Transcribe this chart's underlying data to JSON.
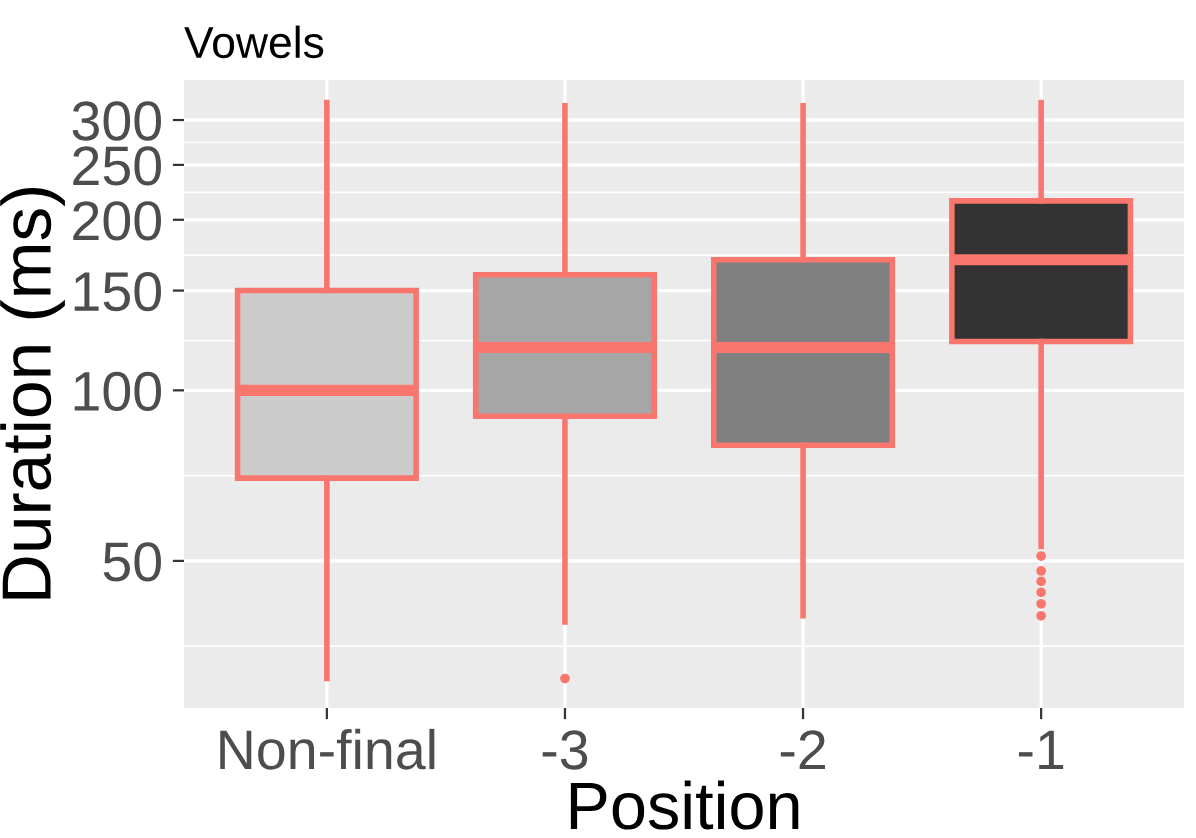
{
  "chart_data": {
    "type": "box",
    "title": "Vowels",
    "xlabel": "Position",
    "ylabel": "Duration (ms)",
    "categories": [
      "Non-final",
      "-3",
      "-2",
      "-1"
    ],
    "series": [
      {
        "color": "#f8766d",
        "colors": [
          "#cccccc",
          "#a6a6a6",
          "#808080",
          "#333333"
        ],
        "boxes": [
          {
            "low": 31,
            "q1": 70,
            "median": 100,
            "q3": 150,
            "high": 322
          },
          {
            "low": 39,
            "q1": 90,
            "median": 119,
            "q3": 160,
            "high": 318,
            "outliers": [
              31
            ]
          },
          {
            "low": 40,
            "q1": 80,
            "median": 119,
            "q3": 170,
            "high": 318
          },
          {
            "low": 53,
            "q1": 122,
            "median": 170,
            "q3": 216,
            "high": 322,
            "outliers": [
              51,
              48,
              46,
              44,
              42,
              40
            ]
          }
        ]
      }
    ],
    "log": "y",
    "ylim": [
      27.5,
      353
    ],
    "yticks": [
      50,
      100,
      150,
      200,
      250,
      300
    ],
    "grid": true,
    "legend": false
  }
}
